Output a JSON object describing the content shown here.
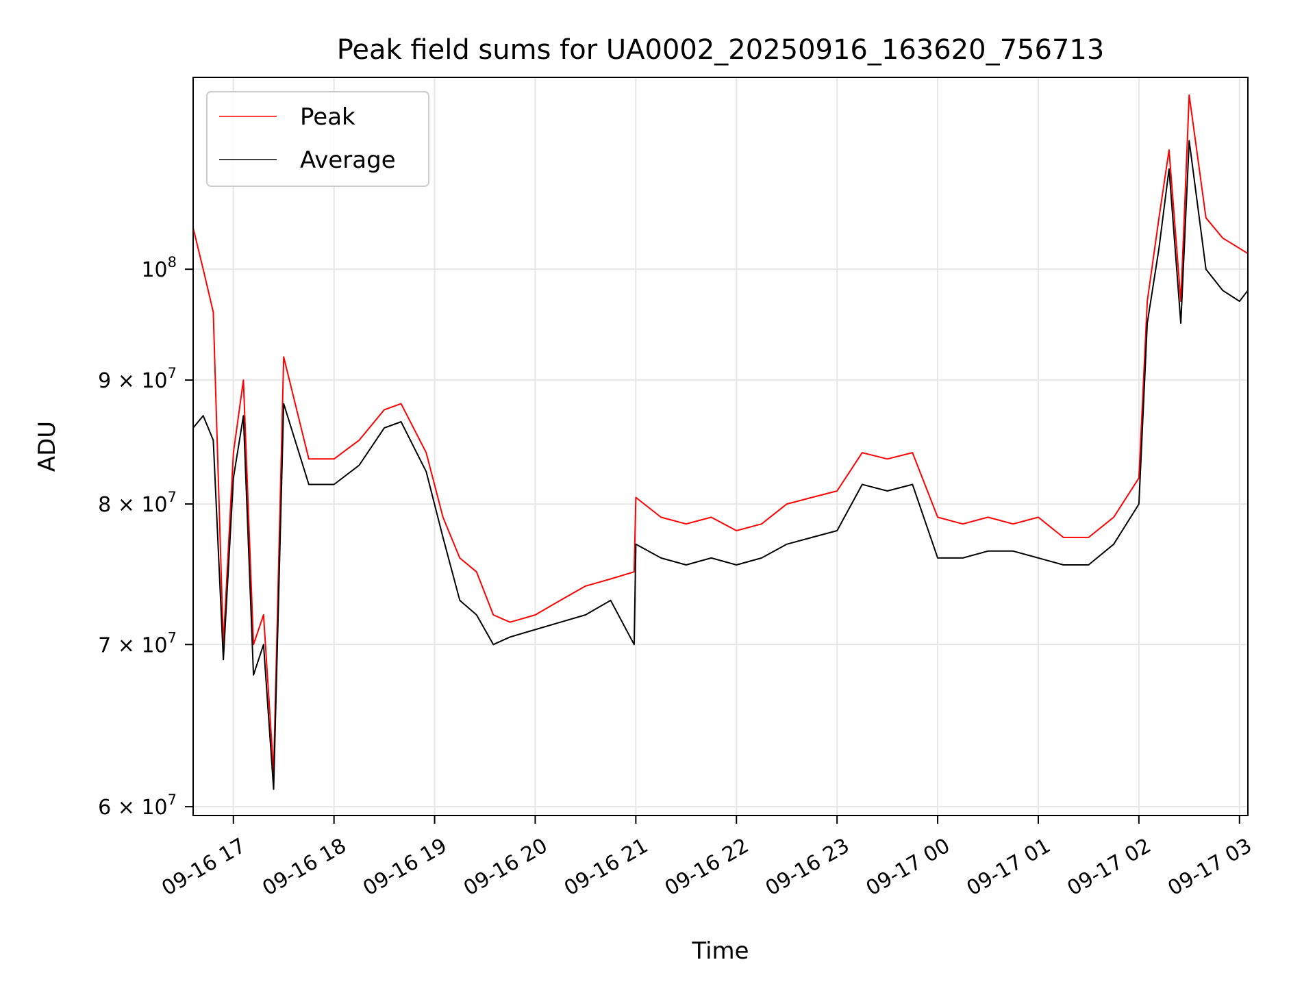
{
  "chart_data": {
    "type": "line",
    "title": "Peak field sums for UA0002_20250916_163620_756713",
    "xlabel": "Time",
    "ylabel": "ADU",
    "yscale": "log",
    "grid": true,
    "legend_position": "top-left",
    "xlim": [
      "09-16 16:36",
      "09-17 03:05"
    ],
    "ylim": [
      59500000,
      120000000
    ],
    "x_ticks": [
      "09-16 17",
      "09-16 18",
      "09-16 19",
      "09-16 20",
      "09-16 21",
      "09-16 22",
      "09-16 23",
      "09-17 00",
      "09-17 01",
      "09-17 02",
      "09-17 03"
    ],
    "y_ticks": [
      {
        "value": 60000000,
        "base": "6",
        "exp": "7"
      },
      {
        "value": 70000000,
        "base": "7",
        "exp": "7"
      },
      {
        "value": 80000000,
        "base": "8",
        "exp": "7"
      },
      {
        "value": 90000000,
        "base": "9",
        "exp": "7"
      },
      {
        "value": 100000000,
        "base": "",
        "exp": "8"
      }
    ],
    "x": [
      "09-16 16:36",
      "09-16 16:42",
      "09-16 16:48",
      "09-16 16:54",
      "09-16 17:00",
      "09-16 17:06",
      "09-16 17:12",
      "09-16 17:18",
      "09-16 17:24",
      "09-16 17:30",
      "09-16 17:45",
      "09-16 18:00",
      "09-16 18:15",
      "09-16 18:30",
      "09-16 18:40",
      "09-16 18:55",
      "09-16 19:05",
      "09-16 19:15",
      "09-16 19:25",
      "09-16 19:35",
      "09-16 19:45",
      "09-16 20:00",
      "09-16 20:15",
      "09-16 20:30",
      "09-16 20:45",
      "09-16 20:59",
      "09-16 21:00",
      "09-16 21:15",
      "09-16 21:30",
      "09-16 21:45",
      "09-16 22:00",
      "09-16 22:15",
      "09-16 22:30",
      "09-16 22:45",
      "09-16 23:00",
      "09-16 23:15",
      "09-16 23:30",
      "09-16 23:45",
      "09-17 00:00",
      "09-17 00:15",
      "09-17 00:30",
      "09-17 00:45",
      "09-17 01:00",
      "09-17 01:15",
      "09-17 01:30",
      "09-17 01:45",
      "09-17 02:00",
      "09-17 02:05",
      "09-17 02:12",
      "09-17 02:18",
      "09-17 02:25",
      "09-17 02:30",
      "09-17 02:40",
      "09-17 02:50",
      "09-17 03:00",
      "09-17 03:05"
    ],
    "series": [
      {
        "name": "Peak",
        "color": "#ff0000",
        "values": [
          104000000,
          100000000,
          96000000,
          70000000,
          84000000,
          90000000,
          70000000,
          72000000,
          62000000,
          92000000,
          83500000,
          83500000,
          85000000,
          87500000,
          88000000,
          84000000,
          79000000,
          76000000,
          75000000,
          72000000,
          71500000,
          72000000,
          73000000,
          74000000,
          74500000,
          75000000,
          80500000,
          79000000,
          78500000,
          79000000,
          78000000,
          78500000,
          80000000,
          80500000,
          81000000,
          84000000,
          83500000,
          84000000,
          79000000,
          78500000,
          79000000,
          78500000,
          79000000,
          77500000,
          77500000,
          79000000,
          82000000,
          97000000,
          105000000,
          112000000,
          97000000,
          118000000,
          105000000,
          103000000,
          102000000,
          101500000
        ]
      },
      {
        "name": "Average",
        "color": "#000000",
        "values": [
          86000000,
          87000000,
          85000000,
          69000000,
          82000000,
          87000000,
          68000000,
          70000000,
          61000000,
          88000000,
          81500000,
          81500000,
          83000000,
          86000000,
          86500000,
          82500000,
          77500000,
          73000000,
          72000000,
          70000000,
          70500000,
          71000000,
          71500000,
          72000000,
          73000000,
          70000000,
          77000000,
          76000000,
          75500000,
          76000000,
          75500000,
          76000000,
          77000000,
          77500000,
          78000000,
          81500000,
          81000000,
          81500000,
          76000000,
          76000000,
          76500000,
          76500000,
          76000000,
          75500000,
          75500000,
          77000000,
          80000000,
          95000000,
          102000000,
          110000000,
          95000000,
          113000000,
          100000000,
          98000000,
          97000000,
          98000000
        ]
      }
    ]
  }
}
